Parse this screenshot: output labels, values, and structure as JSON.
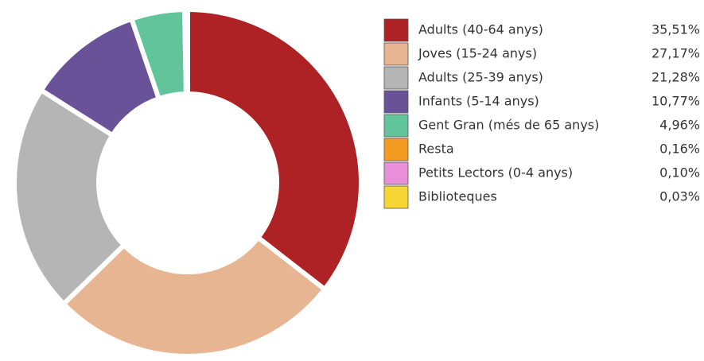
{
  "chart_data": {
    "type": "donut",
    "categories": [
      "Adults (40-64 anys)",
      "Joves (15-24 anys)",
      "Adults (25-39 anys)",
      "Infants (5-14 anys)",
      "Gent Gran (més de 65 anys)",
      "Resta",
      "Petits Lectors (0-4 anys)",
      "Biblioteques"
    ],
    "values": [
      35.51,
      27.17,
      21.28,
      10.77,
      4.96,
      0.16,
      0.1,
      0.03
    ],
    "value_labels": [
      "35,51%",
      "27,17%",
      "21,28%",
      "10,77%",
      "4,96%",
      "0,16%",
      "0,10%",
      "0,03%"
    ],
    "colors": [
      "#ae2124",
      "#e8b592",
      "#b5b5b5",
      "#6a5298",
      "#62c49b",
      "#f39c21",
      "#e88fd8",
      "#f7d633"
    ],
    "legend": "right"
  }
}
